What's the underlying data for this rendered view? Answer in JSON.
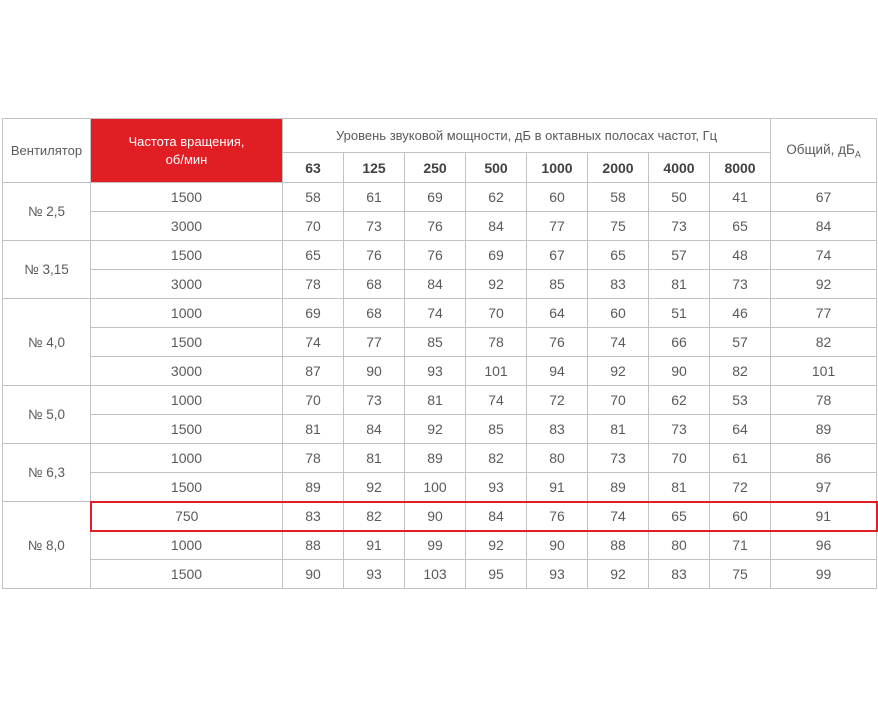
{
  "colors": {
    "accent": "#e21e25",
    "body_text": "#5a5a5c",
    "header_text": "#414143",
    "grid": "#c2c2c4",
    "frame": "#98989a",
    "highlight_border": "#e21e25"
  },
  "table": {
    "headers": {
      "fan": "Вентилятор",
      "speed_line1": "Частота вращения,",
      "speed_line2": "об/мин",
      "octave": "Уровень звуковой мощности, дБ в октавных полосах частот, Гц",
      "bands": [
        "63",
        "125",
        "250",
        "500",
        "1000",
        "2000",
        "4000",
        "8000"
      ],
      "total": "Общий, дБ",
      "total_sub": "А"
    },
    "groups": [
      {
        "fan": "№ 2,5",
        "rows": [
          {
            "speed": "1500",
            "values": [
              58,
              61,
              69,
              62,
              60,
              58,
              50,
              41
            ],
            "total": 67
          },
          {
            "speed": "3000",
            "values": [
              70,
              73,
              76,
              84,
              77,
              75,
              73,
              65
            ],
            "total": 84
          }
        ]
      },
      {
        "fan": "№ 3,15",
        "rows": [
          {
            "speed": "1500",
            "values": [
              65,
              76,
              76,
              69,
              67,
              65,
              57,
              48
            ],
            "total": 74
          },
          {
            "speed": "3000",
            "values": [
              78,
              68,
              84,
              92,
              85,
              83,
              81,
              73
            ],
            "total": 92
          }
        ]
      },
      {
        "fan": "№ 4,0",
        "rows": [
          {
            "speed": "1000",
            "values": [
              69,
              68,
              74,
              70,
              64,
              60,
              51,
              46
            ],
            "total": 77
          },
          {
            "speed": "1500",
            "values": [
              74,
              77,
              85,
              78,
              76,
              74,
              66,
              57
            ],
            "total": 82
          },
          {
            "speed": "3000",
            "values": [
              87,
              90,
              93,
              101,
              94,
              92,
              90,
              82
            ],
            "total": 101
          }
        ]
      },
      {
        "fan": "№ 5,0",
        "rows": [
          {
            "speed": "1000",
            "values": [
              70,
              73,
              81,
              74,
              72,
              70,
              62,
              53
            ],
            "total": 78
          },
          {
            "speed": "1500",
            "values": [
              81,
              84,
              92,
              85,
              83,
              81,
              73,
              64
            ],
            "total": 89
          }
        ]
      },
      {
        "fan": "№ 6,3",
        "rows": [
          {
            "speed": "1000",
            "values": [
              78,
              81,
              89,
              82,
              80,
              73,
              70,
              61
            ],
            "total": 86
          },
          {
            "speed": "1500",
            "values": [
              89,
              92,
              100,
              93,
              91,
              89,
              81,
              72
            ],
            "total": 97
          }
        ]
      },
      {
        "fan": "№ 8,0",
        "rows": [
          {
            "speed": "750",
            "values": [
              83,
              82,
              90,
              84,
              76,
              74,
              65,
              60
            ],
            "total": 91,
            "highlighted": true
          },
          {
            "speed": "1000",
            "values": [
              88,
              91,
              99,
              92,
              90,
              88,
              80,
              71
            ],
            "total": 96
          },
          {
            "speed": "1500",
            "values": [
              90,
              93,
              103,
              95,
              93,
              92,
              83,
              75
            ],
            "total": 99
          }
        ]
      }
    ]
  }
}
